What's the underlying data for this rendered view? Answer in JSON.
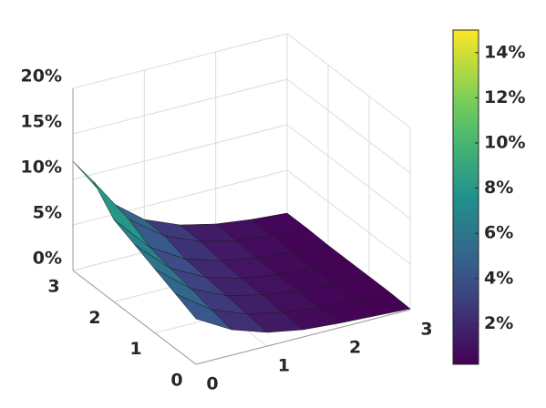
{
  "chart_data": {
    "type": "surface",
    "x": [
      0,
      0.5,
      1,
      1.5,
      2,
      2.5,
      3
    ],
    "y": [
      0,
      0.5,
      1,
      1.5,
      2,
      2.5,
      3
    ],
    "z": [
      [
        5,
        2.8,
        1.5,
        0.8,
        0.5,
        0.3,
        0.1
      ],
      [
        6,
        3.3,
        1.8,
        1.0,
        0.5,
        0.3,
        0.2
      ],
      [
        7,
        3.9,
        2.1,
        1.2,
        0.6,
        0.4,
        0.2
      ],
      [
        8,
        4.4,
        2.4,
        1.3,
        0.7,
        0.4,
        0.2
      ],
      [
        9,
        5.0,
        2.7,
        1.5,
        0.8,
        0.5,
        0.2
      ],
      [
        11.5,
        6.3,
        3.5,
        1.9,
        1.0,
        0.6,
        0.3
      ],
      [
        12,
        6.6,
        3.6,
        2.0,
        1.1,
        0.6,
        0.3
      ]
    ],
    "xlim": [
      0,
      3
    ],
    "ylim": [
      0,
      3
    ],
    "zlim": [
      0,
      20
    ],
    "xticks": [
      0,
      1,
      2,
      3
    ],
    "yticks": [
      0,
      1,
      2,
      3
    ],
    "zticks": [
      {
        "value": 0,
        "label": "0%"
      },
      {
        "value": 5,
        "label": "5%"
      },
      {
        "value": 10,
        "label": "10%"
      },
      {
        "value": 15,
        "label": "15%"
      },
      {
        "value": 20,
        "label": "20%"
      }
    ],
    "colormap": "viridis",
    "clim": [
      0.2,
      15
    ],
    "colorbar_ticks": [
      {
        "value": 2,
        "label": "2%"
      },
      {
        "value": 4,
        "label": "4%"
      },
      {
        "value": 6,
        "label": "6%"
      },
      {
        "value": 8,
        "label": "8%"
      },
      {
        "value": 10,
        "label": "10%"
      },
      {
        "value": 12,
        "label": "12%"
      },
      {
        "value": 14,
        "label": "14%"
      }
    ],
    "grid": true
  }
}
